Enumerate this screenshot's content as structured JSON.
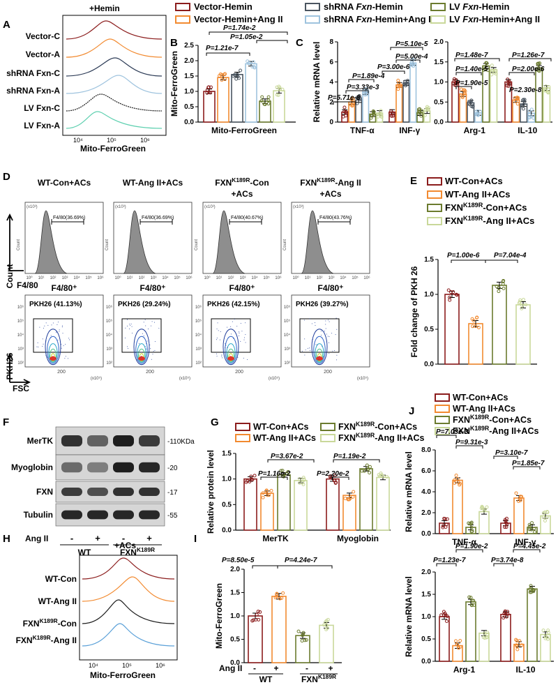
{
  "panels": {
    "A": {
      "label": "A",
      "condition": "+Hemin",
      "xlabel": "Mito-FerroGreen",
      "samples": [
        "Vector-C",
        "Vector-A",
        "shRNA Fxn-C",
        "shRNA Fxn-A",
        "LV Fxn-C",
        "LV Fxn-A"
      ],
      "ticks": [
        "10⁴",
        "10⁵",
        "10⁶"
      ]
    },
    "legend_top": {
      "items": [
        "Vector-Hemin",
        "Vector-Hemin+Ang II",
        "shRNA Fxn-Hemin",
        "shRNA Fxn-Hemin+Ang II",
        "LV Fxn-Hemin",
        "LV Fxn-Hemin+Ang II"
      ],
      "colors": [
        "#8b1c1c",
        "#f28a30",
        "#4a5560",
        "#9ec3de",
        "#6b7b2e",
        "#c9d89a"
      ]
    },
    "B": {
      "label": "B",
      "pvals": [
        "P=1.21e-7",
        "P=1.74e-2",
        "P=1.05e-2"
      ]
    },
    "C": {
      "label": "C",
      "pvals": [
        "P=1.89e-4",
        "P=3.33e-3",
        "P=5.71e-8",
        "P=5.10e-5",
        "P=5.00e-4",
        "P=3.00e-6",
        "P=1.48e-7",
        "P=1.40e-5",
        "P=1.90e-5",
        "P=1.26e-7",
        "P=2.00e-6",
        "P=2.30e-8"
      ]
    },
    "D": {
      "label": "D",
      "titles": [
        "WT-Con+ACs",
        "WT-Ang II+ACs",
        "FXN^K189R-Con +ACs",
        "FXN^K189R-Ang II +ACs"
      ],
      "gates": [
        "F4/80(36.69%)",
        "F4/80(36.69%)",
        "F4/80(40.67%)",
        "F4/80(43.76%)"
      ],
      "subtitle": "F4/80⁺",
      "pkh": [
        "PKH26 (41.13%)",
        "PKH26 (29.24%)",
        "PKH26 (42.15%)",
        "PKH26 (39.27%)"
      ],
      "count_label": "Count",
      "f480_label": "F4/80",
      "pkh_label": "PKH26",
      "fsc_label": "FSC",
      "exp_label": "(x10⁵)",
      "count_exp": "(x10³)",
      "ticks_x": [
        "10⁰",
        "10¹",
        "10²",
        "10³",
        "10⁴",
        "10⁵",
        "10⁶"
      ],
      "ticks_fsc": [
        "200"
      ],
      "ticks_pkh": [
        "10²",
        "10³",
        "10⁴",
        "10⁵",
        "10⁶"
      ]
    },
    "E": {
      "label": "E",
      "pvals": [
        "P=1.00e-6",
        "P=7.04e-4"
      ]
    },
    "legend_WT": {
      "items": [
        "WT-Con+ACs",
        "WT-Ang II+ACs",
        "FXN^K189R-Con+ACs",
        "FXN^K189R-Ang II+ACs"
      ],
      "colors": [
        "#8b1c1c",
        "#f28a30",
        "#6b7b2e",
        "#c9d89a"
      ]
    },
    "F": {
      "label": "F",
      "proteins": [
        "MerTK",
        "Myoglobin",
        "FXN",
        "Tubulin"
      ],
      "mw": [
        "-110KDa",
        "-20",
        "-17",
        "-55"
      ],
      "angii_label": "Ang II",
      "lanes": [
        "-",
        "+",
        "-",
        "+"
      ],
      "groups": [
        "WT",
        "FXN^K189R"
      ]
    },
    "G": {
      "label": "G",
      "pvals": [
        "P=1.16e-2",
        "P=3.67e-2",
        "P=2.20e-2",
        "P=1.19e-2"
      ]
    },
    "H": {
      "label": "H",
      "condition": "+ACs",
      "xlabel": "Mito-FerroGreen",
      "samples": [
        "WT-Con",
        "WT-Ang II",
        "FXN^K189R-Con",
        "FXN^K189R-Ang II"
      ],
      "ticks": [
        "10⁴",
        "10⁵",
        "10⁶"
      ]
    },
    "I": {
      "label": "I",
      "pvals": [
        "P=8.50e-5",
        "P=4.24e-7"
      ],
      "angii_label": "Ang II",
      "signs": [
        "-",
        "+",
        "-",
        "+"
      ],
      "groups": [
        "WT",
        "FXN^K189R"
      ]
    },
    "J": {
      "label": "J",
      "pvals_top": [
        "P=7.03e-3",
        "P=9.31e-3",
        "P=3.10e-7",
        "P=1.85e-7"
      ],
      "pvals_bottom": [
        "P=1.90e-2",
        "P=1.23e-7",
        "P=4.45e-2",
        "P=3.74e-8"
      ]
    }
  },
  "chart_data": [
    {
      "id": "B",
      "type": "bar",
      "ylabel": "Mito-FerroGreen",
      "xlabel": "Mito-FerroGreen",
      "ylim": [
        0,
        2.5
      ],
      "yticks": [
        "0.0",
        "0.5",
        "1.0",
        "1.5",
        "2.0",
        "2.5"
      ],
      "series_names": [
        "Vector-Hemin",
        "Vector-Hemin+Ang II",
        "shRNA Fxn-Hemin",
        "shRNA Fxn-Hemin+Ang II",
        "LV Fxn-Hemin",
        "LV Fxn-Hemin+Ang II"
      ],
      "values": [
        1.0,
        1.45,
        1.55,
        1.9,
        0.68,
        1.02
      ]
    },
    {
      "id": "C1",
      "type": "bar",
      "ylabel": "Relative mRNA level",
      "ylim": [
        0,
        8
      ],
      "yticks": [
        "0",
        "2",
        "4",
        "6",
        "8"
      ],
      "categories": [
        "TNF-α",
        "INF-γ"
      ],
      "series": [
        {
          "name": "Vector-Hemin",
          "values": [
            1.0,
            1.0
          ]
        },
        {
          "name": "Vector-Hemin+Ang II",
          "values": [
            2.0,
            3.7
          ]
        },
        {
          "name": "shRNA Fxn-Hemin",
          "values": [
            2.2,
            3.9
          ]
        },
        {
          "name": "shRNA Fxn-Hemin+Ang II",
          "values": [
            3.0,
            5.9
          ]
        },
        {
          "name": "LV Fxn-Hemin",
          "values": [
            0.8,
            0.9
          ]
        },
        {
          "name": "LV Fxn-Hemin+Ang II",
          "values": [
            0.9,
            1.1
          ]
        }
      ]
    },
    {
      "id": "C2",
      "type": "bar",
      "ylim": [
        0,
        2.0
      ],
      "yticks": [
        "0.0",
        "0.5",
        "1.0",
        "1.5",
        "2.0"
      ],
      "categories": [
        "Arg-1",
        "IL-10"
      ],
      "series": [
        {
          "name": "Vector-Hemin",
          "values": [
            1.0,
            1.0
          ]
        },
        {
          "name": "Vector-Hemin+Ang II",
          "values": [
            0.7,
            0.55
          ]
        },
        {
          "name": "shRNA Fxn-Hemin",
          "values": [
            0.48,
            0.45
          ]
        },
        {
          "name": "shRNA Fxn-Hemin+Ang II",
          "values": [
            0.23,
            0.22
          ]
        },
        {
          "name": "LV Fxn-Hemin",
          "values": [
            1.4,
            1.35
          ]
        },
        {
          "name": "LV Fxn-Hemin+Ang II",
          "values": [
            1.3,
            0.85
          ]
        }
      ]
    },
    {
      "id": "E",
      "type": "bar",
      "ylabel": "Fold change of PKH 26",
      "ylim": [
        0,
        1.5
      ],
      "yticks": [
        "0.0",
        "0.5",
        "1.0",
        "1.5"
      ],
      "values": [
        1.0,
        0.58,
        1.13,
        0.85
      ]
    },
    {
      "id": "G",
      "type": "bar",
      "ylabel": "Relative protein level",
      "ylim": [
        0,
        1.5
      ],
      "yticks": [
        "0.0",
        "0.5",
        "1.0",
        "1.5"
      ],
      "categories": [
        "MerTK",
        "Myoglobin"
      ],
      "series": [
        {
          "name": "WT-Con+ACs",
          "values": [
            1.0,
            1.0
          ]
        },
        {
          "name": "WT-Ang II+ACs",
          "values": [
            0.72,
            0.68
          ]
        },
        {
          "name": "FXN^K189R-Con+ACs",
          "values": [
            1.08,
            1.2
          ]
        },
        {
          "name": "FXN^K189R-Ang II+ACs",
          "values": [
            0.97,
            1.03
          ]
        }
      ]
    },
    {
      "id": "I",
      "type": "bar",
      "ylabel": "Mito-FerroGreen",
      "ylim": [
        0,
        2.0
      ],
      "yticks": [
        "0.0",
        "0.5",
        "1.0",
        "1.5",
        "2.0"
      ],
      "values": [
        1.0,
        1.42,
        0.58,
        0.8
      ]
    },
    {
      "id": "J1",
      "type": "bar",
      "ylabel": "Relative mRNA level",
      "ylim": [
        0,
        8
      ],
      "yticks": [
        "0.0",
        "2.0",
        "4.0",
        "6.0",
        "8.0"
      ],
      "categories": [
        "TNF-α",
        "INF-γ"
      ],
      "series": [
        {
          "name": "WT-Con+ACs",
          "values": [
            1.0,
            1.0
          ]
        },
        {
          "name": "WT-Ang II+ACs",
          "values": [
            5.1,
            3.4
          ]
        },
        {
          "name": "FXN^K189R-Con+ACs",
          "values": [
            0.6,
            0.6
          ]
        },
        {
          "name": "FXN^K189R-Ang II+ACs",
          "values": [
            2.1,
            1.7
          ]
        }
      ]
    },
    {
      "id": "J2",
      "type": "bar",
      "ylabel": "Relative mRNA level",
      "ylim": [
        0,
        2.0
      ],
      "yticks": [
        "0.0",
        "0.5",
        "1.0",
        "1.5",
        "2.0"
      ],
      "categories": [
        "Arg-1",
        "IL-10"
      ],
      "series": [
        {
          "name": "WT-Con+ACs",
          "values": [
            1.0,
            1.05
          ]
        },
        {
          "name": "WT-Ang II+ACs",
          "values": [
            0.35,
            0.38
          ]
        },
        {
          "name": "FXN^K189R-Con+ACs",
          "values": [
            1.33,
            1.62
          ]
        },
        {
          "name": "FXN^K189R-Ang II+ACs",
          "values": [
            0.63,
            0.6
          ]
        }
      ]
    }
  ]
}
